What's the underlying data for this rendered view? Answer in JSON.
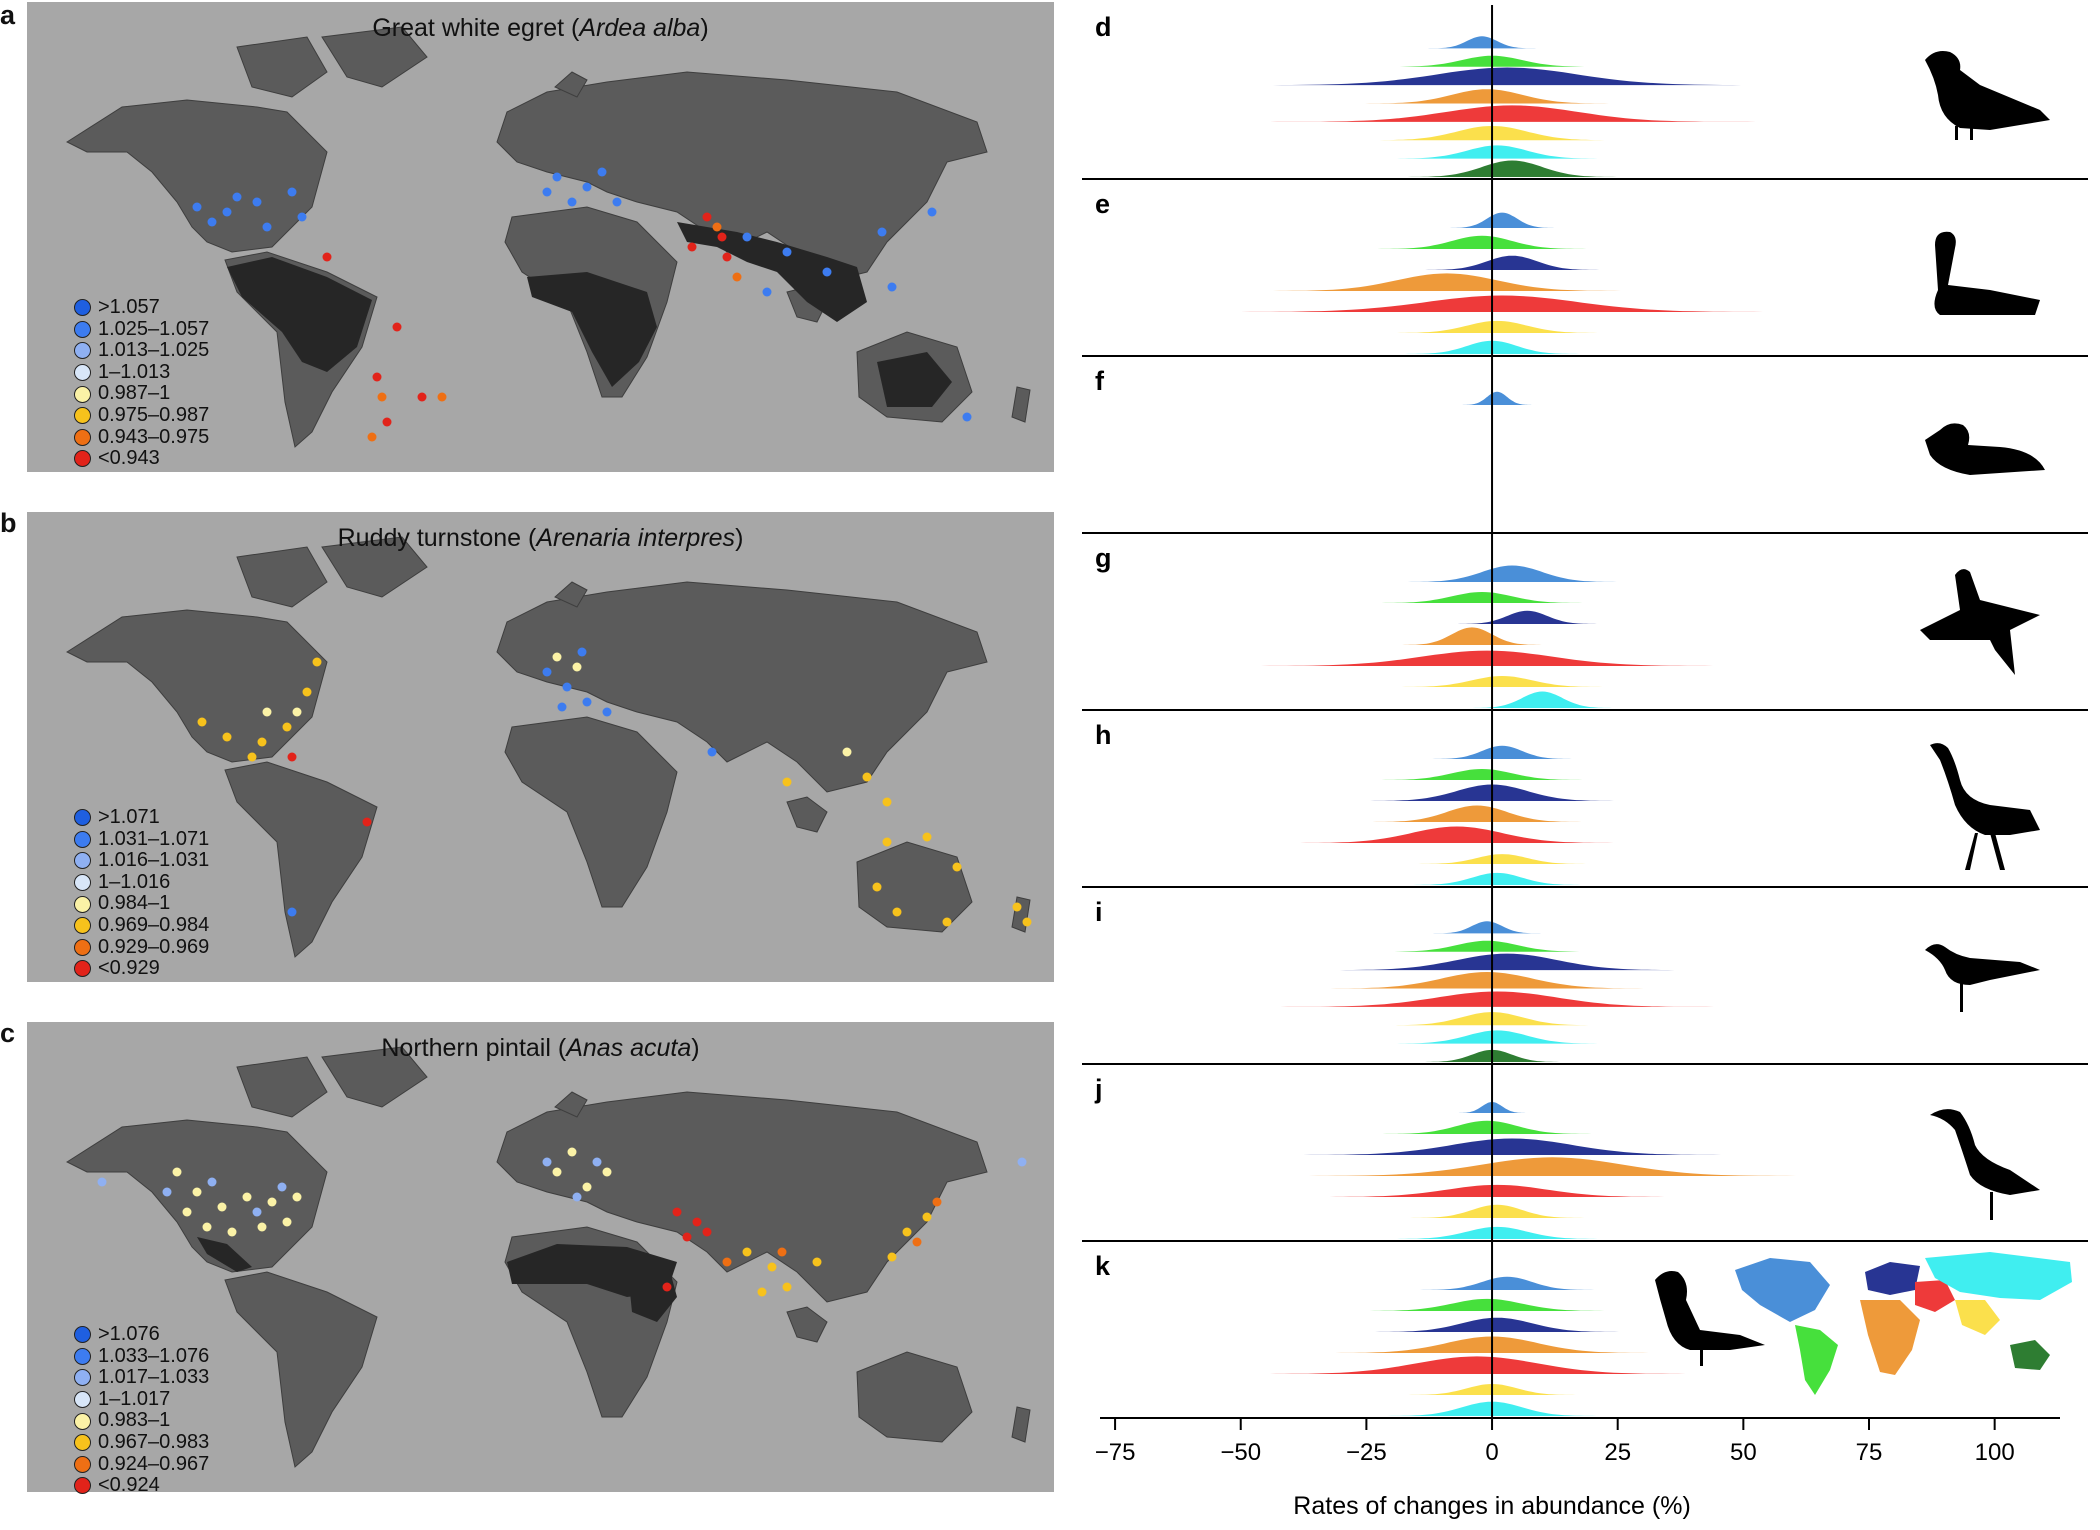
{
  "panels": {
    "a": {
      "letter": "a",
      "common_name": "Great white egret",
      "latin_name": "Ardea alba",
      "legend": [
        ">1.057",
        "1.025–1.057",
        "1.013–1.025",
        "1–1.013",
        "0.987–1",
        "0.975–0.987",
        "0.943–0.975",
        "<0.943"
      ]
    },
    "b": {
      "letter": "b",
      "common_name": "Ruddy turnstone",
      "latin_name": "Arenaria interpres",
      "legend": [
        ">1.071",
        "1.031–1.071",
        "1.016–1.031",
        "1–1.016",
        "0.984–1",
        "0.969–0.984",
        "0.929–0.969",
        "<0.929"
      ]
    },
    "c": {
      "letter": "c",
      "common_name": "Northern pintail",
      "latin_name": "Anas acuta",
      "legend": [
        ">1.076",
        "1.033–1.076",
        "1.017–1.033",
        "1–1.017",
        "0.983–1",
        "0.967–0.983",
        "0.924–0.967",
        "<0.924"
      ]
    }
  },
  "legend_colors": [
    "#1f5fe0",
    "#3d7cf0",
    "#8fb0f2",
    "#d8e6f8",
    "#fbf2a6",
    "#f7c21c",
    "#ee6f14",
    "#e2231a"
  ],
  "ridge_letters": [
    "d",
    "e",
    "f",
    "g",
    "h",
    "i",
    "j",
    "k"
  ],
  "chart_data": {
    "type": "ridgeline-density",
    "xlabel": "Rates of changes in abundance (%)",
    "xlim": [
      -78,
      113
    ],
    "xticks": [
      -75,
      -50,
      -25,
      0,
      25,
      50,
      75,
      100
    ],
    "xtick_labels": [
      "−75",
      "−50",
      "−25",
      "0",
      "25",
      "50",
      "75",
      "100"
    ],
    "region_colors": [
      "#4a8fd8",
      "#46e03c",
      "#283593",
      "#ee9a3a",
      "#ee3a3a",
      "#fbe04c",
      "#40eef0",
      "#2e7d32"
    ],
    "groups": [
      {
        "letter": "d",
        "rows": [
          [
            -2,
            3,
            0.55
          ],
          [
            0,
            6,
            0.5
          ],
          [
            3,
            14,
            0.8
          ],
          [
            -1,
            7,
            0.65
          ],
          [
            4,
            13,
            0.75
          ],
          [
            0,
            7,
            0.65
          ],
          [
            1,
            6,
            0.6
          ],
          [
            4,
            6,
            0.75
          ]
        ]
      },
      {
        "letter": "e",
        "rows": [
          [
            2,
            3,
            0.7
          ],
          [
            -2,
            6,
            0.6
          ],
          [
            4,
            5,
            0.65
          ],
          [
            -9,
            10,
            0.8
          ],
          [
            2,
            15,
            0.75
          ],
          [
            1,
            6,
            0.55
          ],
          [
            0,
            5,
            0.6
          ]
        ]
      },
      {
        "letter": "f",
        "rows": [
          [
            1,
            2,
            0.6
          ]
        ]
      },
      {
        "letter": "g",
        "rows": [
          [
            4,
            6,
            0.75
          ],
          [
            -2,
            6,
            0.5
          ],
          [
            7,
            4,
            0.6
          ],
          [
            -4,
            4,
            0.8
          ],
          [
            -1,
            13,
            0.7
          ],
          [
            2,
            6,
            0.5
          ],
          [
            10,
            4,
            0.75
          ]
        ]
      },
      {
        "letter": "h",
        "rows": [
          [
            2,
            4,
            0.6
          ],
          [
            -2,
            6,
            0.5
          ],
          [
            0,
            7,
            0.75
          ],
          [
            -3,
            6,
            0.75
          ],
          [
            -7,
            9,
            0.75
          ],
          [
            2,
            5,
            0.45
          ],
          [
            1,
            5,
            0.55
          ]
        ]
      },
      {
        "letter": "i",
        "rows": [
          [
            -1,
            3,
            0.55
          ],
          [
            -1,
            6,
            0.5
          ],
          [
            3,
            10,
            0.75
          ],
          [
            -1,
            9,
            0.75
          ],
          [
            1,
            12,
            0.7
          ],
          [
            0,
            6,
            0.6
          ],
          [
            1,
            6,
            0.6
          ],
          [
            0,
            4,
            0.55
          ]
        ]
      },
      {
        "letter": "j",
        "rows": [
          [
            0,
            2,
            0.5
          ],
          [
            -1,
            6,
            0.6
          ],
          [
            4,
            12,
            0.75
          ],
          [
            12,
            14,
            0.85
          ],
          [
            1,
            10,
            0.55
          ],
          [
            1,
            5,
            0.6
          ],
          [
            1,
            6,
            0.55
          ]
        ]
      },
      {
        "letter": "k",
        "rows": [
          [
            3,
            5,
            0.6
          ],
          [
            -1,
            7,
            0.55
          ],
          [
            1,
            7,
            0.65
          ],
          [
            0,
            9,
            0.75
          ],
          [
            -3,
            12,
            0.8
          ],
          [
            0,
            5,
            0.5
          ],
          [
            0,
            6,
            0.65
          ]
        ]
      }
    ]
  }
}
